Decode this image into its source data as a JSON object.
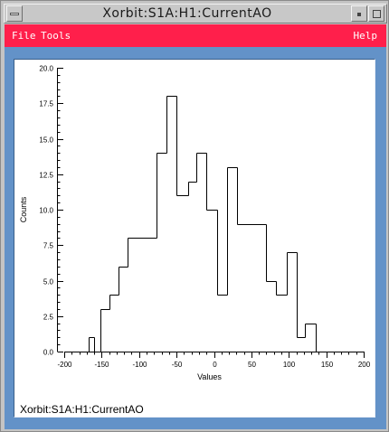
{
  "window": {
    "title": "Xorbit:S1A:H1:CurrentAO"
  },
  "menu": {
    "file": "File",
    "tools": "Tools",
    "help": "Help"
  },
  "footer": {
    "label": "Xorbit:S1A:H1:CurrentAO"
  },
  "colors": {
    "menubar": "#ff1f4b",
    "frame": "#6392c8",
    "plot_background": "#ffffff",
    "line": "#000000"
  },
  "chart_data": {
    "type": "histogram",
    "xlabel": "Values",
    "ylabel": "Counts",
    "xlim": [
      -200,
      200
    ],
    "ylim": [
      0,
      20
    ],
    "xticks": [
      -200,
      -150,
      -100,
      -50,
      0,
      50,
      100,
      150,
      200
    ],
    "yticks": [
      0,
      2.5,
      5,
      7.5,
      10,
      12.5,
      15,
      17.5,
      20
    ],
    "xtick_labels": [
      "-200",
      "-150",
      "-100",
      "-50",
      "0",
      "50",
      "100",
      "150",
      "200"
    ],
    "ytick_labels": [
      "0.0",
      "2.5",
      "5.0",
      "7.5",
      "10.0",
      "12.5",
      "15.0",
      "17.5",
      "20.0"
    ],
    "grid": false,
    "bins": [
      {
        "x0": -167,
        "x1": -160,
        "count": 1
      },
      {
        "x0": -160,
        "x1": -152,
        "count": 0
      },
      {
        "x0": -152,
        "x1": -140,
        "count": 3
      },
      {
        "x0": -140,
        "x1": -128,
        "count": 4
      },
      {
        "x0": -128,
        "x1": -116,
        "count": 6
      },
      {
        "x0": -116,
        "x1": -103,
        "count": 8
      },
      {
        "x0": -103,
        "x1": -77,
        "count": 8
      },
      {
        "x0": -77,
        "x1": -63,
        "count": 14
      },
      {
        "x0": -63,
        "x1": -50,
        "count": 18
      },
      {
        "x0": -50,
        "x1": -35,
        "count": 11
      },
      {
        "x0": -35,
        "x1": -23,
        "count": 12
      },
      {
        "x0": -23,
        "x1": -10,
        "count": 14
      },
      {
        "x0": -10,
        "x1": 4,
        "count": 10
      },
      {
        "x0": 4,
        "x1": 17,
        "count": 4
      },
      {
        "x0": 17,
        "x1": 31,
        "count": 13
      },
      {
        "x0": 31,
        "x1": 70,
        "count": 9
      },
      {
        "x0": 70,
        "x1": 83,
        "count": 5
      },
      {
        "x0": 83,
        "x1": 97,
        "count": 4
      },
      {
        "x0": 97,
        "x1": 110,
        "count": 7
      },
      {
        "x0": 110,
        "x1": 122,
        "count": 1
      },
      {
        "x0": 122,
        "x1": 136,
        "count": 2
      }
    ]
  }
}
